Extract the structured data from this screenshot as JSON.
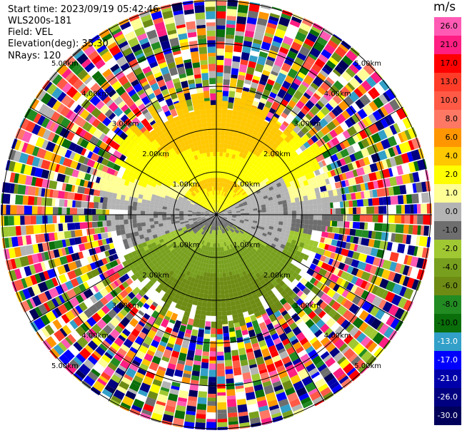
{
  "header": {
    "start_time": "Start time: 2023/09/19 05:42:46",
    "instrument": "WLS200s-181",
    "field": "Field: VEL",
    "elevation": "Elevation(deg): 35.30",
    "nrays": "NRays: 120"
  },
  "chart_data": {
    "type": "heatmap",
    "projection": "polar (PPI)",
    "range_ring_labels": [
      "1.00km",
      "2.00km",
      "3.00km",
      "4.00km",
      "5.00km"
    ],
    "range_rings_km": [
      1,
      2,
      3,
      4,
      5
    ],
    "nrays": 120,
    "colorbar": {
      "unit": "m/s",
      "ticks": [
        "26.0",
        "21.0",
        "17.0",
        "13.0",
        "10.0",
        "8.0",
        "6.0",
        "4.0",
        "2.0",
        "1.0",
        "0.0",
        "-1.0",
        "-2.0",
        "-4.0",
        "-6.0",
        "-8.0",
        "-10.0",
        "-13.0",
        "-17.0",
        "-21.0",
        "-26.0",
        "-30.0"
      ],
      "colors": [
        "#ff5ab4",
        "#ff1e82",
        "#ff0000",
        "#ff3c28",
        "#ff5a46",
        "#ff7864",
        "#ff9600",
        "#ffc800",
        "#ffff00",
        "#ffff96",
        "#b4b4b4",
        "#6e6e6e",
        "#a0c832",
        "#78a01e",
        "#6e8c14",
        "#228b22",
        "#0a6e0a",
        "#32a0c8",
        "#0000ff",
        "#0000aa",
        "#000080",
        "#00005a"
      ]
    }
  }
}
